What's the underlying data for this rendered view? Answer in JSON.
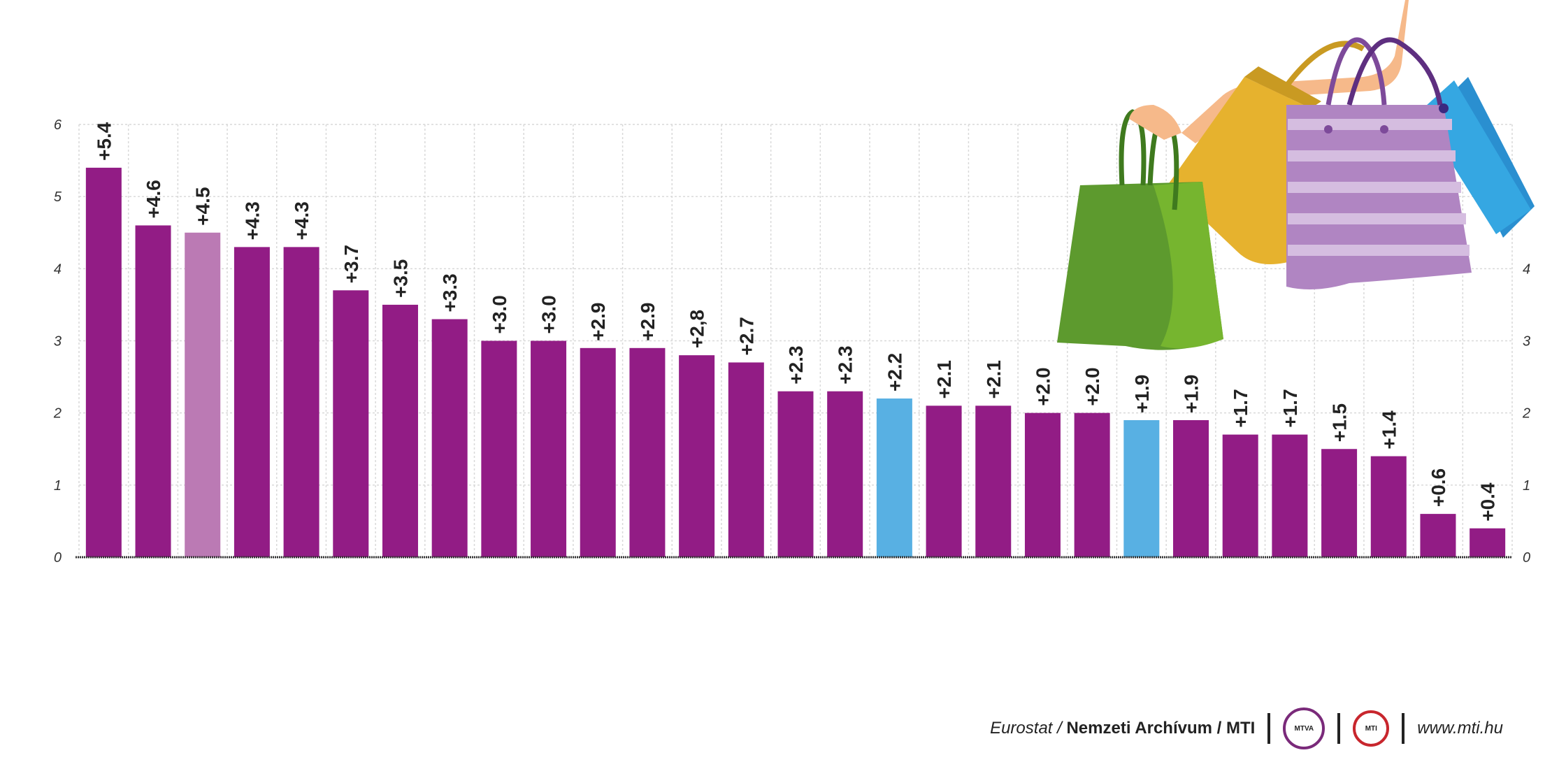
{
  "chart_data": {
    "type": "bar",
    "title": "",
    "xlabel": "",
    "ylabel": "",
    "ylim": [
      0,
      6
    ],
    "yticks": [
      0,
      1,
      2,
      3,
      4,
      5,
      6
    ],
    "right_yticks": [
      0,
      1,
      2,
      3,
      4
    ],
    "grid": true,
    "categories": [],
    "values": [
      5.4,
      4.6,
      4.5,
      4.3,
      4.3,
      3.7,
      3.5,
      3.3,
      3.0,
      3.0,
      2.9,
      2.9,
      2.8,
      2.7,
      2.3,
      2.3,
      2.2,
      2.1,
      2.1,
      2.0,
      2.0,
      1.9,
      1.9,
      1.7,
      1.7,
      1.5,
      1.4,
      0.6,
      0.4
    ],
    "labels": [
      "+5.4",
      "+4.6",
      "+4.5",
      "+4.3",
      "+4.3",
      "+3.7",
      "+3.5",
      "+3.3",
      "+3.0",
      "+3.0",
      "+2.9",
      "+2.9",
      "+2,8",
      "+2.7",
      "+2.3",
      "+2.3",
      "+2.2",
      "+2.1",
      "+2.1",
      "+2.0",
      "+2.0",
      "+1.9",
      "+1.9",
      "+1.7",
      "+1.7",
      "+1.5",
      "+1.4",
      "+0.6",
      "+0.4"
    ],
    "bar_colors": [
      "#921c85",
      "#921c85",
      "#bb7ab4",
      "#921c85",
      "#921c85",
      "#921c85",
      "#921c85",
      "#921c85",
      "#921c85",
      "#921c85",
      "#921c85",
      "#921c85",
      "#921c85",
      "#921c85",
      "#921c85",
      "#921c85",
      "#58b0e3",
      "#921c85",
      "#921c85",
      "#921c85",
      "#921c85",
      "#58b0e3",
      "#921c85",
      "#921c85",
      "#921c85",
      "#921c85",
      "#921c85",
      "#921c85",
      "#921c85"
    ]
  },
  "footer": {
    "source_italic": "Eurostat / ",
    "source_bold": "Nemzeti Archívum / MTI",
    "logo1": "MTVA",
    "logo2": "MTI",
    "url": "www.mti.hu"
  },
  "colors": {
    "grid": "#d9d9d9",
    "axis": "#333333"
  }
}
